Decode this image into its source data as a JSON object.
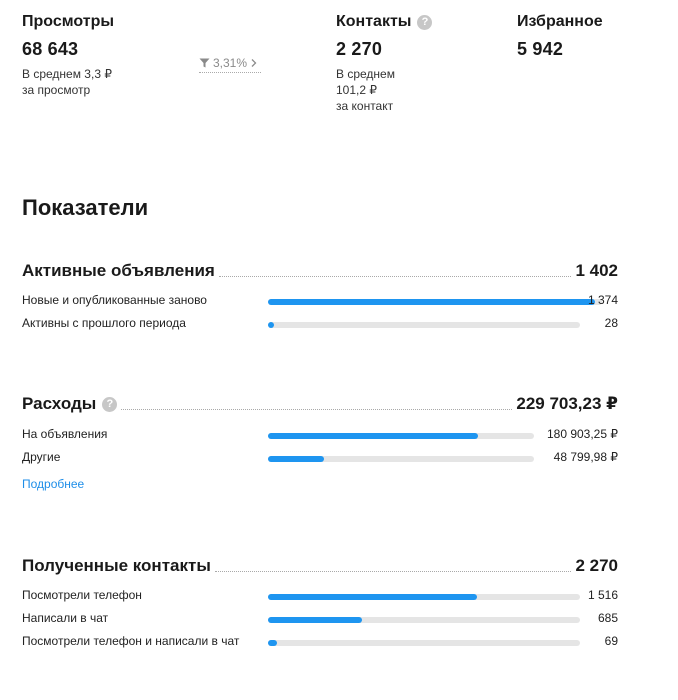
{
  "stats": {
    "views": {
      "title": "Просмотры",
      "value": "68 643",
      "sub1": "В среднем 3,3 ₽",
      "sub2": "за просмотр"
    },
    "conversion": {
      "value": "3,31%"
    },
    "contacts": {
      "title": "Контакты",
      "value": "2 270",
      "sub1": "В среднем",
      "sub2": "101,2 ₽",
      "sub3": "за контакт"
    },
    "favorites": {
      "title": "Избранное",
      "value": "5 942"
    }
  },
  "section_title": "Показатели",
  "active_ads": {
    "title": "Активные объявления",
    "total": "1 402",
    "rows": [
      {
        "label": "Новые и опубликованные заново",
        "value": "1 374",
        "fraction": 0.98
      },
      {
        "label": "Активны с прошлого периода",
        "value": "28",
        "fraction": 0.02
      }
    ]
  },
  "expenses": {
    "title": "Расходы",
    "total": "229 703,23 ₽",
    "rows": [
      {
        "label": "На объявления",
        "value": "180 903,25 ₽",
        "fraction": 0.79
      },
      {
        "label": "Другие",
        "value": "48 799,98 ₽",
        "fraction": 0.21
      }
    ],
    "more_link": "Подробнее"
  },
  "received_contacts": {
    "title": "Полученные контакты",
    "total": "2 270",
    "rows": [
      {
        "label": "Посмотрели телефон",
        "value": "1 516",
        "fraction": 0.67
      },
      {
        "label": "Написали в чат",
        "value": "685",
        "fraction": 0.3
      },
      {
        "label": "Посмотрели телефон и написали в чат",
        "value": "69",
        "fraction": 0.03
      }
    ]
  },
  "colors": {
    "bar_fill": "#1e95f0",
    "bar_track": "#e5e5e5",
    "link": "#1e8ee8",
    "help_icon": "#c7c7c7"
  },
  "icons": {
    "help": "question-circle-icon",
    "funnel": "funnel-icon",
    "chevron": "chevron-right-icon"
  }
}
